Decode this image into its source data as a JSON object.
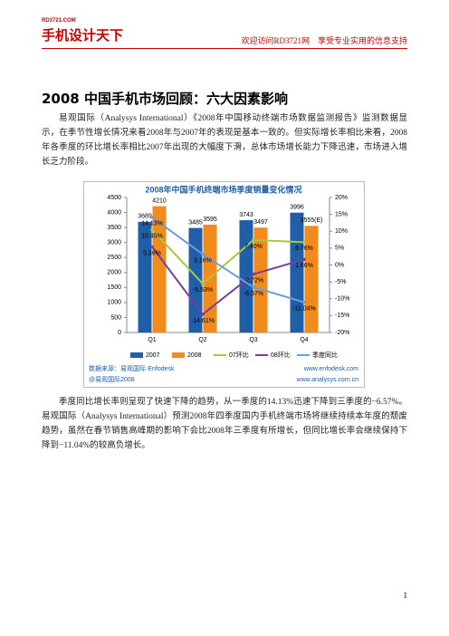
{
  "header": {
    "logo_top": "RD3721.COM",
    "logo": "手机设计天下",
    "slogan": "欢迎访问RD3721网　享受专业实用的信息支持"
  },
  "title": "2008 中国手机市场回顾：六大因素影响",
  "paragraphs": [
    "易观国际（Analysys International）《2008年中国移动终端市场数据监测报告》监测数据显示，在季节性增长情况来看2008年与2007年的表现是基本一致的。但实际增长率相比来看，2008年各季度的环比增长率相比2007年出现的大幅度下滑，总体市场增长能力下降迅速，市场进入增长乏力阶段。",
    "季度同比增长率则呈现了快速下降的趋势，从一季度的14.13%迅速下降到三季度的−6.57%。易观国际（Analysys International）预测2008年四季度国内手机终端市场将继续持续本年度的颓废趋势，虽然在春节销售高峰期的影响下会比2008年三季度有所增长，但同比增长率会继续保持下降到−11.04%的较高负增长。"
  ],
  "chart_data": {
    "type": "bar",
    "title": "2008年中国手机终端市场季度销量变化情况",
    "categories": [
      "Q1",
      "Q2",
      "Q3",
      "Q4"
    ],
    "series": [
      {
        "name": "2007",
        "color": "#1f5fa8",
        "values": [
          3689,
          3485,
          3743,
          3996
        ]
      },
      {
        "name": "2008",
        "color": "#f28a1c",
        "values": [
          4210,
          3595,
          3497,
          3555
        ],
        "value_labels": [
          "4210",
          "3595",
          "3497",
          "3555(E)"
        ]
      },
      {
        "name": "07环比",
        "color": "#a8c838",
        "axis": "y2",
        "type": "line",
        "values": [
          10.45,
          -5.53,
          7.4,
          6.76
        ],
        "value_labels": [
          "10.45%",
          "-5.53%",
          "7.40%",
          "6.76%"
        ]
      },
      {
        "name": "08环比",
        "color": "#7a3ca0",
        "axis": "y2",
        "type": "line",
        "values": [
          5.36,
          -14.61,
          -2.72,
          1.66
        ],
        "value_labels": [
          "5.36%",
          "-14.61%",
          "-2.72%",
          "1.66%"
        ]
      },
      {
        "name": "季度同比",
        "color": "#6a9fd8",
        "axis": "y2",
        "type": "line",
        "values": [
          14.13,
          3.16,
          -6.57,
          -11.04
        ],
        "value_labels": [
          "14.13%",
          "3.16%",
          "-6.57%",
          "-11.04%"
        ]
      }
    ],
    "ylim": [
      0,
      4500
    ],
    "yticks": [
      0,
      500,
      1000,
      1500,
      2000,
      2500,
      3000,
      3500,
      4000,
      4500
    ],
    "y2lim": [
      -20,
      20
    ],
    "y2ticks": [
      {
        "value": -20,
        "label": "-20%"
      },
      {
        "value": -15,
        "label": "-15%"
      },
      {
        "value": -10,
        "label": "-10%"
      },
      {
        "value": -5,
        "label": "-5%"
      },
      {
        "value": 0,
        "label": "0%"
      },
      {
        "value": 5,
        "label": "5%"
      },
      {
        "value": 10,
        "label": "10%"
      },
      {
        "value": 15,
        "label": "15%"
      },
      {
        "value": 20,
        "label": "20%"
      }
    ],
    "grid": false,
    "legend": "bottom",
    "source": "数据来源：易观国际·Enfodesk",
    "copyright": "@易观国际2008",
    "url1": "www.enfodesk.com",
    "url2": "www.analysys.com.cn"
  },
  "page_number": "1"
}
